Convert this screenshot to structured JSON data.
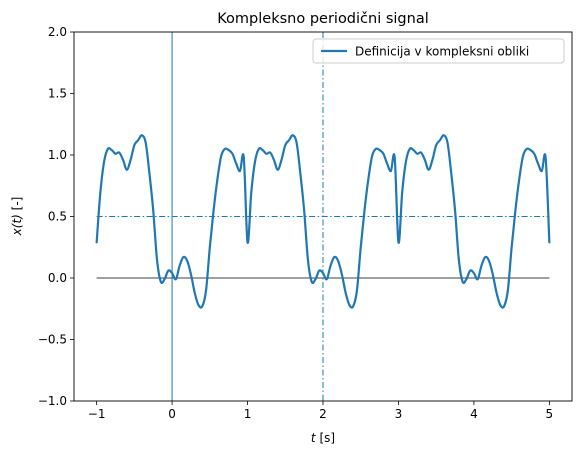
{
  "chart_data": {
    "type": "line",
    "title": "Kompleksno periodični signal",
    "xlabel_main": "t",
    "xlabel_unit": " [s]",
    "ylabel_main": "x(t)",
    "ylabel_unit": " [-]",
    "xlim": [
      -1.3,
      5.3
    ],
    "ylim": [
      -1.0,
      2.0
    ],
    "x_ticks": [
      -1,
      0,
      1,
      2,
      3,
      4,
      5
    ],
    "x_tick_labels": [
      "−1",
      "0",
      "1",
      "2",
      "3",
      "4",
      "5"
    ],
    "y_ticks": [
      -1.0,
      -0.5,
      0.0,
      0.5,
      1.0,
      1.5,
      2.0
    ],
    "y_tick_labels": [
      "−1.0",
      "−0.5",
      "0.0",
      "0.5",
      "1.0",
      "1.5",
      "2.0"
    ],
    "legend_position": "top-right",
    "grid": false,
    "period": 2,
    "mean_value": 0.5,
    "period_markers_x": [
      0,
      2
    ],
    "zero_line": {
      "from": -1,
      "to": 5,
      "value": 0
    },
    "series": [
      {
        "name": "Definicija v kompleksni obliki",
        "color": "#1f77b4",
        "x": [
          -1.0,
          -0.95,
          -0.9,
          -0.85,
          -0.8,
          -0.75,
          -0.7,
          -0.65,
          -0.6,
          -0.55,
          -0.5,
          -0.45,
          -0.4,
          -0.35,
          -0.3,
          -0.25,
          -0.2,
          -0.15,
          -0.1,
          -0.05,
          0.0,
          0.05,
          0.1,
          0.15,
          0.2,
          0.25,
          0.3,
          0.35,
          0.4,
          0.45,
          0.5,
          0.55,
          0.6,
          0.65,
          0.7,
          0.75,
          0.8,
          0.85,
          0.9,
          0.95
        ],
        "y": [
          0.29,
          0.7,
          0.95,
          1.05,
          1.04,
          1.01,
          1.02,
          0.96,
          0.88,
          0.96,
          1.08,
          1.12,
          1.16,
          1.1,
          0.85,
          0.55,
          0.15,
          -0.03,
          -0.01,
          0.06,
          0.04,
          -0.01,
          0.1,
          0.17,
          0.14,
          0.03,
          -0.12,
          -0.22,
          -0.23,
          -0.1,
          0.25,
          0.55,
          0.8,
          0.99,
          1.05,
          1.04,
          1.01,
          0.93,
          0.87,
          0.98
        ],
        "tail_y_at_5": 0.29
      },
      {
        "name": "",
        "style": "dashdot",
        "color": "#1f77b4",
        "x": [
          -1,
          5
        ],
        "y": [
          0.5,
          0.5
        ]
      }
    ]
  }
}
